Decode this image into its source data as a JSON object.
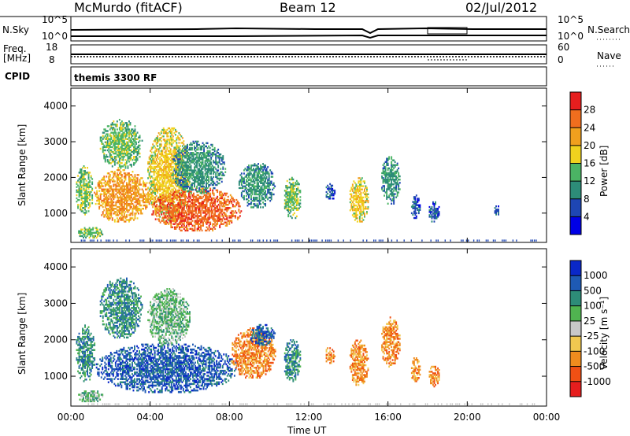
{
  "header": {
    "station": "McMurdo (fitACF)",
    "beam": "Beam 12",
    "date": "02/Jul/2012"
  },
  "top_panels": {
    "nsky": {
      "left_label": "N.Sky",
      "left_ticks": [
        "10^5",
        "10^0"
      ],
      "right_ticks": [
        "10^5",
        "10^0"
      ],
      "right_label": "N.Search"
    },
    "freq": {
      "left_label_1": "Freq.",
      "left_label_2": "[MHz]",
      "left_ticks": [
        "18",
        "8"
      ],
      "right_ticks": [
        "60",
        "0"
      ],
      "right_label": "Nave"
    },
    "cpid": {
      "left_label": "CPID",
      "text": "themis 3300 RF"
    }
  },
  "chart_data": [
    {
      "type": "heatmap",
      "name": "power",
      "ylabel": "Slant Range [km]",
      "xlabel": "Time UT",
      "xticks": [
        "00:00",
        "04:00",
        "08:00",
        "12:00",
        "16:00",
        "20:00",
        "00:00"
      ],
      "xlim_hours": [
        0,
        24
      ],
      "yticks": [
        1000,
        2000,
        3000,
        4000
      ],
      "ylim_km": [
        180,
        4500
      ],
      "colorbar": {
        "label": "Power [dB]",
        "ticks": [
          "28",
          "24",
          "20",
          "16",
          "12",
          "8",
          "4"
        ],
        "colors": [
          "#0000e6",
          "#1e46b4",
          "#2d8c78",
          "#4bb464",
          "#f0d21e",
          "#f0a01e",
          "#f06e1e",
          "#e61e1e"
        ]
      },
      "blobs": [
        {
          "t0": 0.2,
          "t1": 1.1,
          "r0": 900,
          "r1": 2300,
          "val": 3
        },
        {
          "t0": 0.3,
          "t1": 1.6,
          "r0": 250,
          "r1": 600,
          "val": 3
        },
        {
          "t0": 1.1,
          "t1": 4.0,
          "r0": 700,
          "r1": 2200,
          "val": 5
        },
        {
          "t0": 1.4,
          "t1": 3.6,
          "r0": 2200,
          "r1": 3600,
          "val": 3
        },
        {
          "t0": 3.8,
          "t1": 6.0,
          "r0": 700,
          "r1": 3400,
          "val": 4
        },
        {
          "t0": 4.0,
          "t1": 8.6,
          "r0": 450,
          "r1": 1700,
          "val": 6
        },
        {
          "t0": 5.0,
          "t1": 7.8,
          "r0": 1500,
          "r1": 3000,
          "val": 2
        },
        {
          "t0": 8.4,
          "t1": 10.3,
          "r0": 1100,
          "r1": 2400,
          "val": 2
        },
        {
          "t0": 10.7,
          "t1": 11.6,
          "r0": 800,
          "r1": 2000,
          "val": 3
        },
        {
          "t0": 12.8,
          "t1": 13.3,
          "r0": 1300,
          "r1": 1800,
          "val": 1
        },
        {
          "t0": 14.0,
          "t1": 15.0,
          "r0": 700,
          "r1": 2000,
          "val": 4
        },
        {
          "t0": 15.6,
          "t1": 16.6,
          "r0": 1200,
          "r1": 2600,
          "val": 2
        },
        {
          "t0": 17.1,
          "t1": 17.6,
          "r0": 800,
          "r1": 1500,
          "val": 1
        },
        {
          "t0": 18.0,
          "t1": 18.6,
          "r0": 700,
          "r1": 1300,
          "val": 1
        },
        {
          "t0": 21.3,
          "t1": 21.6,
          "r0": 900,
          "r1": 1200,
          "val": 1
        }
      ]
    },
    {
      "type": "heatmap",
      "name": "velocity",
      "ylabel": "Slant Range [km]",
      "xlabel": "Time UT",
      "xticks": [
        "00:00",
        "04:00",
        "08:00",
        "12:00",
        "16:00",
        "20:00",
        "00:00"
      ],
      "xlim_hours": [
        0,
        24
      ],
      "yticks": [
        1000,
        2000,
        3000,
        4000
      ],
      "ylim_km": [
        180,
        4500
      ],
      "colorbar": {
        "label": "Velocity [m s⁻¹]",
        "ticks": [
          "1000",
          "500",
          "100",
          "25",
          "-25",
          "-100",
          "-500",
          "-1000"
        ],
        "colors": [
          "#e61e1e",
          "#f05014",
          "#f08c1e",
          "#f0c850",
          "#c8c8c8",
          "#50b450",
          "#2d8c78",
          "#1e5ab4",
          "#0a28c8"
        ]
      },
      "blobs": [
        {
          "t0": 0.2,
          "t1": 1.2,
          "r0": 800,
          "r1": 2400,
          "val": 6
        },
        {
          "t0": 0.3,
          "t1": 1.6,
          "r0": 250,
          "r1": 600,
          "val": 5
        },
        {
          "t0": 1.2,
          "t1": 8.4,
          "r0": 500,
          "r1": 1900,
          "val": 7
        },
        {
          "t0": 1.4,
          "t1": 3.6,
          "r0": 2000,
          "r1": 3700,
          "val": 6
        },
        {
          "t0": 3.8,
          "t1": 6.0,
          "r0": 1800,
          "r1": 3400,
          "val": 5
        },
        {
          "t0": 8.0,
          "t1": 10.3,
          "r0": 900,
          "r1": 2300,
          "val": 2
        },
        {
          "t0": 9.0,
          "t1": 10.3,
          "r0": 1800,
          "r1": 2400,
          "val": 7
        },
        {
          "t0": 10.7,
          "t1": 11.6,
          "r0": 800,
          "r1": 2000,
          "val": 6
        },
        {
          "t0": 12.8,
          "t1": 13.3,
          "r0": 1300,
          "r1": 1800,
          "val": 2
        },
        {
          "t0": 14.0,
          "t1": 15.0,
          "r0": 700,
          "r1": 2000,
          "val": 2
        },
        {
          "t0": 15.6,
          "t1": 16.6,
          "r0": 1200,
          "r1": 2600,
          "val": 2
        },
        {
          "t0": 17.1,
          "t1": 17.6,
          "r0": 800,
          "r1": 1500,
          "val": 2
        },
        {
          "t0": 18.0,
          "t1": 18.6,
          "r0": 700,
          "r1": 1300,
          "val": 2
        }
      ]
    }
  ]
}
